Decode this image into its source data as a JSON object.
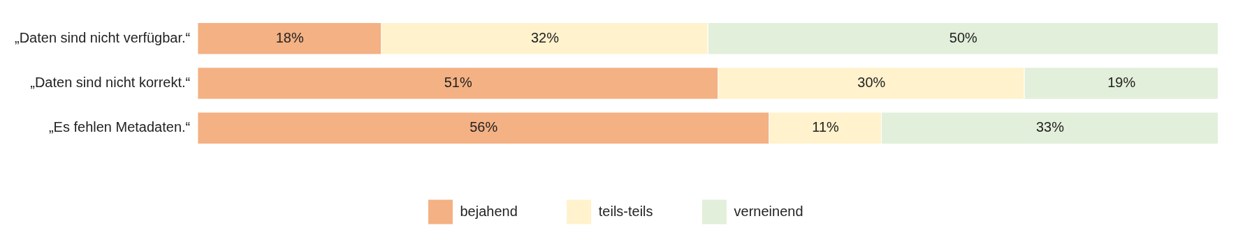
{
  "chart_data": {
    "type": "bar",
    "orientation": "horizontal",
    "stacked": true,
    "legend": "bottom",
    "tick_labels": "y",
    "categories": [
      "„Daten sind nicht verfügbar.“",
      "„Daten sind nicht korrekt.“",
      "„Es fehlen Metadaten.“"
    ],
    "series": [
      {
        "name": "bejahend",
        "color": "#f4b183",
        "values": [
          18,
          51,
          56
        ],
        "value_labels": [
          "18%",
          "51%",
          "56%"
        ]
      },
      {
        "name": "teils-teils",
        "color": "#fff2cc",
        "values": [
          32,
          30,
          11
        ],
        "value_labels": [
          "32%",
          "30%",
          "11%"
        ]
      },
      {
        "name": "verneinend",
        "color": "#e2efda",
        "values": [
          50,
          19,
          33
        ],
        "value_labels": [
          "50%",
          "19%",
          "33%"
        ]
      }
    ]
  }
}
